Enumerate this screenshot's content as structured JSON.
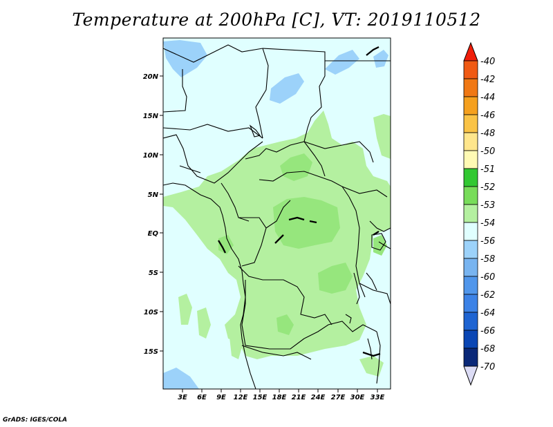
{
  "title": "Temperature at 200hPa [C], VT: 2019110512",
  "footer": "GrADS: IGES/COLA",
  "map": {
    "lat_labels": [
      "20N",
      "15N",
      "10N",
      "5N",
      "EQ",
      "5S",
      "10S",
      "15S"
    ],
    "lon_labels": [
      "3E",
      "6E",
      "9E",
      "12E",
      "15E",
      "18E",
      "21E",
      "24E",
      "27E",
      "30E",
      "33E"
    ],
    "colors": {
      "ocean_land_base": "#e0ffff",
      "light_green": "#b4f0a0",
      "mid_green": "#96e67d",
      "light_blue": "#9cd2fa"
    }
  },
  "colorbar": {
    "labels": [
      "-40",
      "-42",
      "-44",
      "-46",
      "-48",
      "-50",
      "-51",
      "-52",
      "-53",
      "-54",
      "-56",
      "-58",
      "-60",
      "-62",
      "-64",
      "-66",
      "-68",
      "-70"
    ],
    "colors": [
      "#f03c14",
      "#f05a14",
      "#f07814",
      "#f5a01e",
      "#fac346",
      "#ffe68c",
      "#fffab4",
      "#32c832",
      "#78dc5a",
      "#b4f0a0",
      "#e0ffff",
      "#9cd2fa",
      "#78b4f0",
      "#5096eb",
      "#3c82e6",
      "#1e64d2",
      "#0a46b4",
      "#0a2878",
      "#000064",
      "#dcdcf5"
    ],
    "top_arrow_color": "#f01e0a",
    "bottom_arrow_color": "#dcdcf5"
  }
}
